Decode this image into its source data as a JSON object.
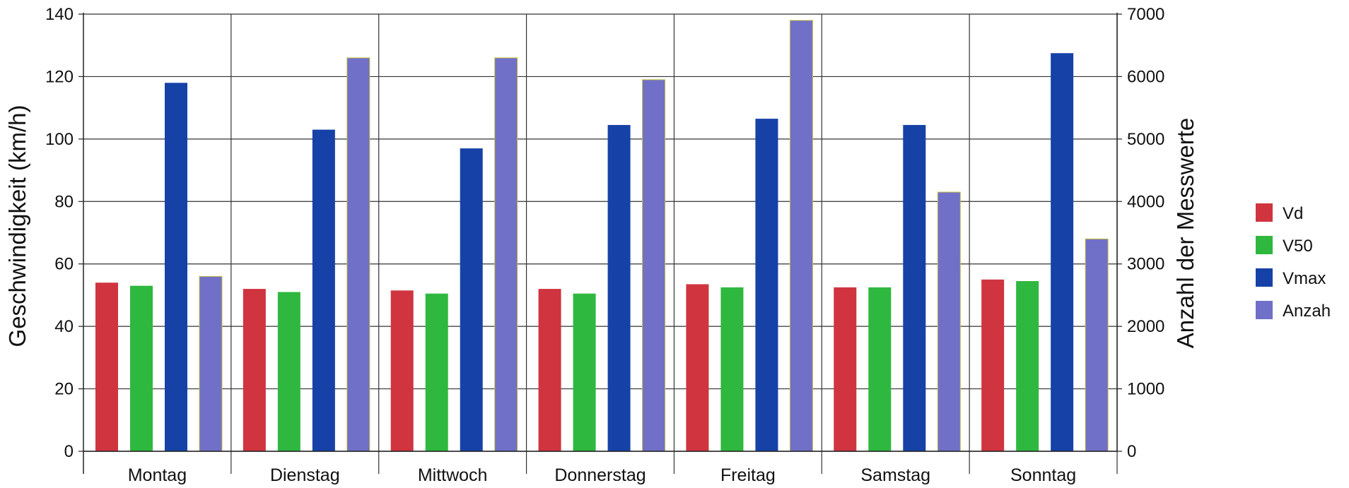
{
  "chart_data": {
    "type": "bar",
    "categories": [
      "Montag",
      "Dienstag",
      "Mittwoch",
      "Donnerstag",
      "Freitag",
      "Samstag",
      "Sonntag"
    ],
    "ylabel": "Geschwindigkeit (km/h)",
    "y2label": "Anzahl der Messwerte",
    "ylim": [
      0,
      140
    ],
    "y2lim": [
      0,
      7000
    ],
    "yticks": [
      0,
      20,
      40,
      60,
      80,
      100,
      120,
      140
    ],
    "y2ticks": [
      0,
      1000,
      2000,
      3000,
      4000,
      5000,
      6000,
      7000
    ],
    "legend_position": "right",
    "grid": "horizontal and vertical",
    "series": [
      {
        "name": "Vd",
        "axis": "left",
        "color": "#d0343f",
        "values": [
          54,
          52,
          51.5,
          52,
          53.5,
          52.5,
          55
        ]
      },
      {
        "name": "V50",
        "axis": "left",
        "color": "#2fb83f",
        "values": [
          53,
          51,
          50.5,
          50.5,
          52.5,
          52.5,
          54.5
        ]
      },
      {
        "name": "Vmax",
        "axis": "left",
        "color": "#1642a8",
        "values": [
          118,
          103,
          97,
          104.5,
          106.5,
          104.5,
          127.5
        ]
      },
      {
        "name": "Anzah",
        "axis": "right",
        "color": "#7070c8",
        "values": [
          2800,
          6300,
          6300,
          5950,
          6900,
          4150,
          3400
        ]
      }
    ]
  }
}
